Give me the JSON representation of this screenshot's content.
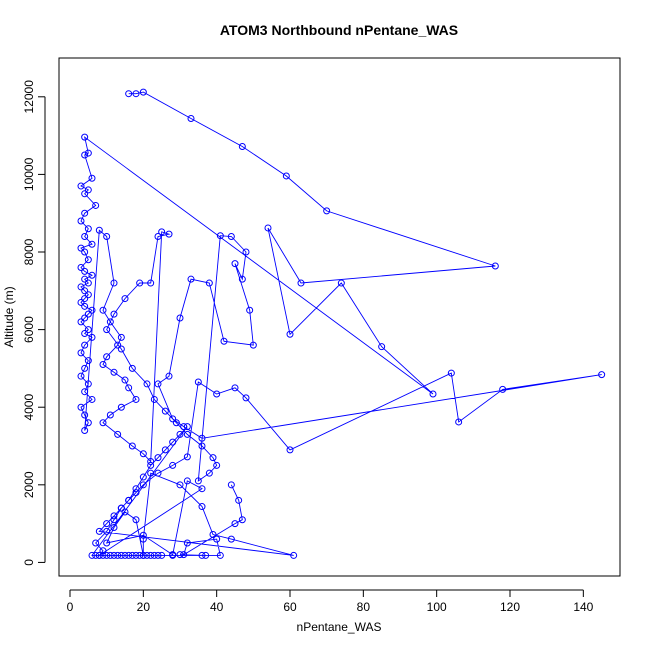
{
  "chart_data": {
    "type": "scatter",
    "title": "ATOM3 Northbound nPentane_WAS",
    "xlabel": "nPentane_WAS",
    "ylabel": "Altitude (m)",
    "xlim": [
      -3,
      150
    ],
    "ylim": [
      -350,
      13000
    ],
    "xticks": [
      0,
      20,
      40,
      60,
      80,
      100,
      120,
      140
    ],
    "yticks": [
      0,
      2000,
      4000,
      6000,
      8000,
      10000,
      12000
    ],
    "grid": false,
    "legend": "none",
    "series_color": "#0000ff",
    "marker": "open-circle",
    "connected_lines": true,
    "series": [
      {
        "x": [
          16,
          18,
          20,
          33,
          47,
          59,
          70,
          116,
          63,
          54,
          60,
          74,
          85,
          99,
          4,
          5,
          4,
          6,
          3,
          5,
          4,
          7,
          4,
          3,
          5,
          4,
          6,
          3,
          4,
          5,
          3,
          4,
          6,
          4,
          5,
          3,
          4,
          5,
          4,
          3,
          4,
          6,
          5,
          4,
          3,
          5,
          4,
          6,
          4,
          3,
          5,
          4,
          3,
          5,
          4,
          6,
          3,
          4,
          5,
          4,
          8,
          10,
          12,
          9,
          11,
          14,
          13,
          10,
          9,
          12,
          15,
          16,
          18,
          14,
          11,
          9,
          13,
          17,
          20,
          22,
          25,
          27,
          24,
          22,
          19,
          15,
          12,
          10,
          14,
          17,
          21,
          23,
          26,
          29,
          32,
          36,
          39,
          40,
          38,
          35,
          41,
          44,
          48,
          47,
          45,
          49,
          50,
          42,
          38,
          33,
          30,
          27,
          24,
          28,
          31,
          36,
          145,
          118,
          106,
          104,
          60,
          48,
          45,
          40,
          35,
          32,
          28,
          24,
          20,
          18,
          16,
          14,
          12,
          10,
          8,
          61,
          44,
          39,
          36,
          30,
          22,
          20,
          20,
          18,
          15,
          12,
          10,
          20,
          28,
          32,
          36,
          8,
          9,
          7,
          10,
          12,
          14,
          16,
          18,
          20,
          22,
          24,
          26,
          28,
          30,
          32,
          6,
          7,
          8,
          9,
          10,
          11,
          12,
          13,
          14,
          15,
          16,
          17,
          18,
          19,
          20,
          21,
          22,
          23,
          24,
          25,
          28,
          37,
          30,
          36,
          41,
          40,
          32,
          31,
          45,
          47,
          46,
          44
        ],
        "y": [
          12080,
          12080,
          12120,
          11440,
          10720,
          9960,
          9060,
          7640,
          7200,
          8620,
          5880,
          7200,
          5560,
          4340,
          10960,
          10550,
          10500,
          9900,
          9700,
          9600,
          9500,
          9200,
          9000,
          8800,
          8600,
          8400,
          8200,
          8100,
          8000,
          7800,
          7600,
          7500,
          7400,
          7300,
          7200,
          7100,
          7000,
          6900,
          6800,
          6700,
          6600,
          6500,
          6400,
          6300,
          6200,
          6000,
          5900,
          5800,
          5600,
          5400,
          5200,
          5000,
          4800,
          4600,
          4400,
          4200,
          4000,
          3800,
          3600,
          3400,
          8560,
          8400,
          7200,
          6500,
          6200,
          5800,
          5600,
          5300,
          5100,
          4900,
          4700,
          4500,
          4200,
          4000,
          3800,
          3600,
          3300,
          3000,
          2800,
          2600,
          8520,
          8460,
          8400,
          7200,
          7200,
          6800,
          6400,
          6000,
          5500,
          5000,
          4600,
          4200,
          3900,
          3600,
          3300,
          3000,
          2700,
          2500,
          2300,
          2100,
          8420,
          8400,
          8000,
          7300,
          7700,
          6500,
          5600,
          5700,
          7200,
          7300,
          6300,
          4800,
          4600,
          3700,
          3500,
          3200,
          4840,
          4460,
          3620,
          4880,
          2900,
          4240,
          4500,
          4340,
          4650,
          2720,
          2500,
          2300,
          2000,
          1800,
          1600,
          1400,
          1200,
          1000,
          800,
          180,
          600,
          720,
          1440,
          2000,
          2300,
          600,
          180,
          1100,
          1300,
          900,
          500,
          700,
          200,
          2100,
          1900,
          180,
          300,
          500,
          800,
          1100,
          1400,
          1600,
          1900,
          2200,
          2500,
          2700,
          2900,
          3100,
          3300,
          3500,
          180,
          180,
          180,
          180,
          180,
          180,
          180,
          180,
          180,
          180,
          180,
          180,
          180,
          180,
          180,
          180,
          180,
          180,
          180,
          180,
          180,
          180,
          200,
          180,
          180,
          600,
          500,
          200,
          1000,
          1100,
          1600,
          2000
        ]
      }
    ]
  }
}
